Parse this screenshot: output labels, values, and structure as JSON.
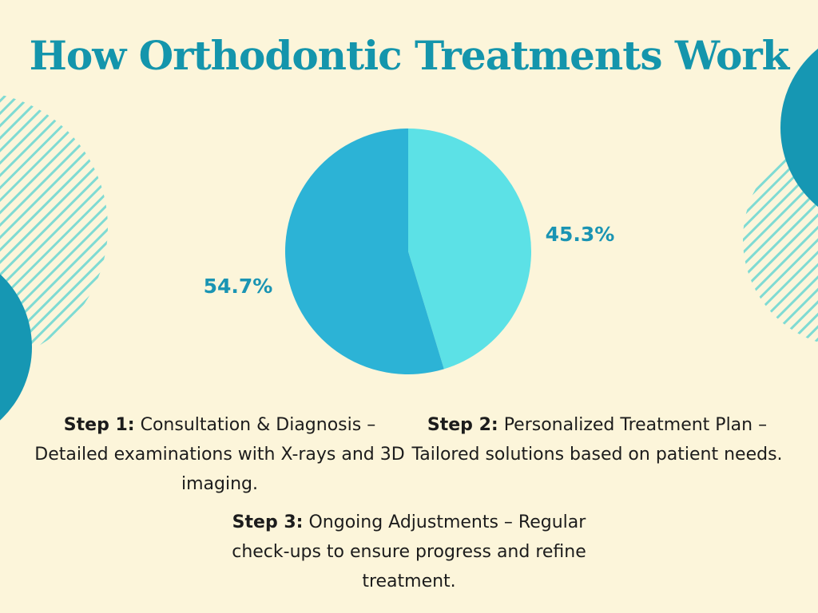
{
  "title": "How Orthodontic Treatments Work",
  "colors": {
    "background": "#fcf5da",
    "title": "#1495ac",
    "accent_dark": "#1697b3",
    "stripe": "#7fdbd3",
    "label": "#1a94b3"
  },
  "chart_data": {
    "type": "pie",
    "title": "",
    "slices": [
      {
        "label": "45.3%",
        "value": 45.3,
        "color": "#5ce1e6"
      },
      {
        "label": "54.7%",
        "value": 54.7,
        "color": "#2cb3d6"
      }
    ]
  },
  "steps": [
    {
      "heading": "Step 1:",
      "text": "Consultation & Diagnosis – Detailed examinations with X-rays and 3D imaging."
    },
    {
      "heading": "Step 2:",
      "text": "Personalized Treatment Plan – Tailored solutions based on patient needs."
    },
    {
      "heading": "Step 3:",
      "text": "Ongoing Adjustments – Regular check-ups to ensure progress and refine treatment."
    }
  ]
}
